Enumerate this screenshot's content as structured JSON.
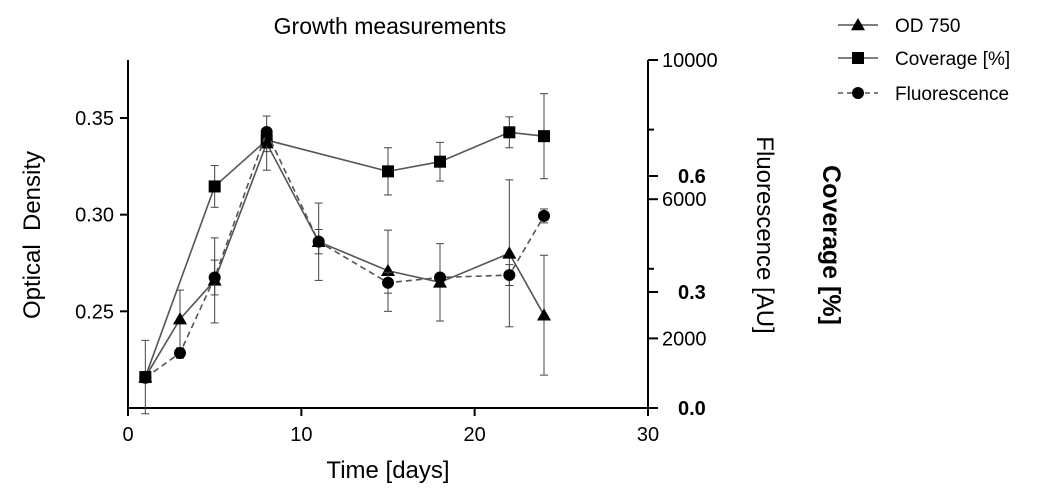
{
  "chart_data": {
    "type": "line",
    "title": "Growth measurements",
    "xlabel": "Time [days]",
    "xlim": [
      0,
      30
    ],
    "xticks": [
      0,
      10,
      20,
      30
    ],
    "axes": {
      "left": {
        "label": "Optical  Density",
        "ylim": [
          0.2,
          0.38
        ],
        "ticks": [
          "0.25",
          "0.30",
          "0.35"
        ],
        "tick_values": [
          0.25,
          0.3,
          0.35
        ]
      },
      "right1": {
        "label": "Fluorescence [AU]",
        "ylim": [
          0,
          10000
        ],
        "ticks": [
          "2000",
          "6000",
          "10000"
        ],
        "tick_values": [
          2000,
          6000,
          10000
        ]
      },
      "right2": {
        "label": "Coverage [%]",
        "ylim": [
          0.0,
          0.9
        ],
        "ticks": [
          "0.0",
          "0.3",
          "0.6"
        ],
        "tick_values": [
          0.0,
          0.3,
          0.6
        ]
      }
    },
    "legend_position": "top-right",
    "series": [
      {
        "name": "OD 750",
        "axis": "left",
        "marker": "triangle",
        "line_style": "solid",
        "x": [
          1,
          3,
          5,
          8,
          11,
          15,
          18,
          22,
          24
        ],
        "y": [
          0.216,
          0.246,
          0.266,
          0.337,
          0.286,
          0.271,
          0.265,
          0.28,
          0.248
        ],
        "err": [
          0.019,
          0.015,
          0.022,
          0.014,
          0.02,
          0.021,
          0.02,
          0.038,
          0.031
        ]
      },
      {
        "name": "Coverage [%]",
        "axis": "right2",
        "marker": "square",
        "line_style": "solid",
        "x": [
          1,
          5,
          8,
          15,
          18,
          22,
          24
        ],
        "y": [
          0.08,
          0.573,
          0.693,
          0.612,
          0.637,
          0.713,
          0.703
        ],
        "err": [
          0.0,
          0.054,
          0.03,
          0.061,
          0.05,
          0.04,
          0.11
        ]
      },
      {
        "name": "Fluorescence",
        "axis": "right1",
        "marker": "circle",
        "line_style": "dashed",
        "x": [
          1,
          3,
          5,
          8,
          11,
          15,
          18,
          22,
          24
        ],
        "y": [
          870,
          1580,
          3750,
          7930,
          4780,
          3600,
          3750,
          3820,
          5520
        ],
        "err": [
          0,
          150,
          500,
          0,
          350,
          300,
          0,
          300,
          200
        ]
      }
    ]
  }
}
